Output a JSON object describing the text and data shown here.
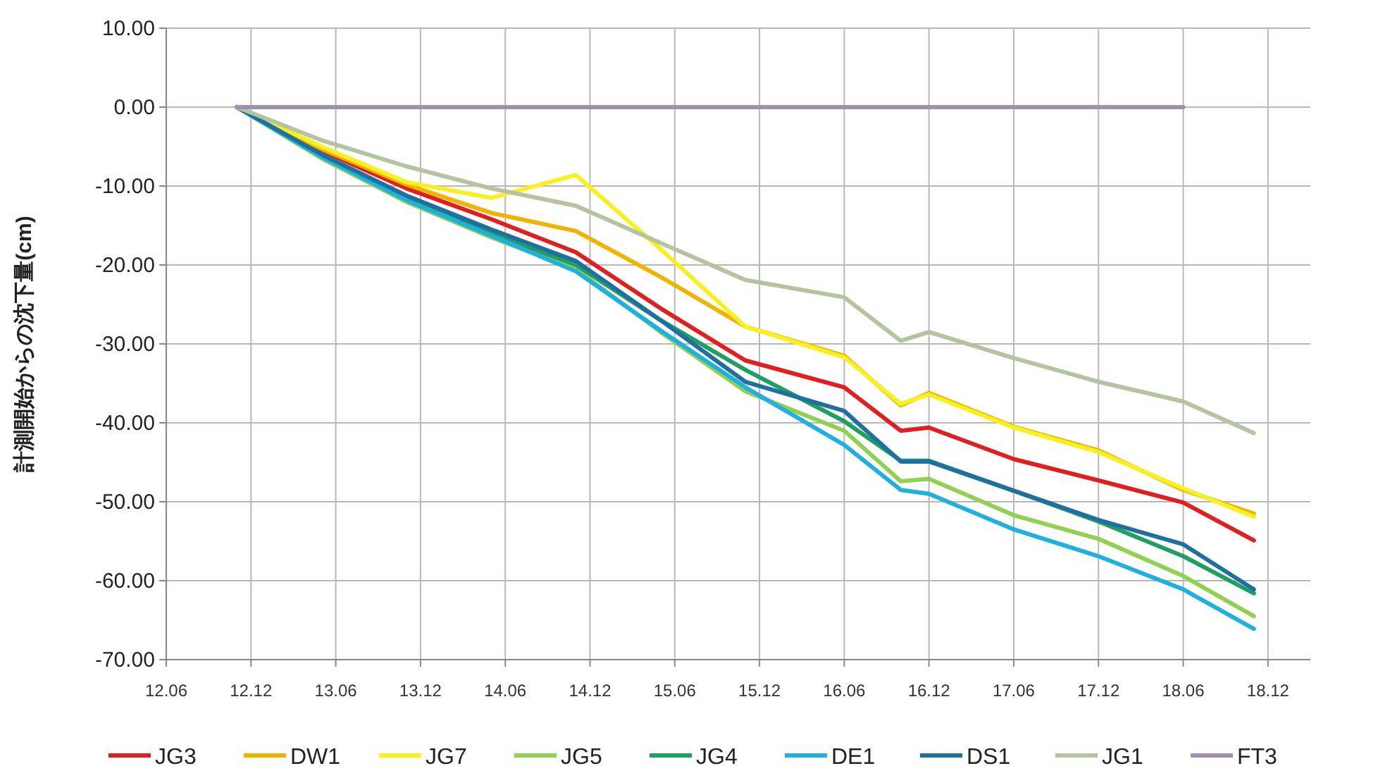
{
  "chart_data": {
    "type": "line",
    "ylabel": "計測開始からの沈下量(cm)",
    "x": [
      "2012-11",
      "2013-05",
      "2013-11",
      "2014-05",
      "2014-11",
      "2015-05",
      "2015-11",
      "2016-06",
      "2016-10",
      "2016-12",
      "2017-06",
      "2017-12",
      "2018-06",
      "2018-11"
    ],
    "series": [
      {
        "name": "JG3",
        "color": "#e02020",
        "values": [
          0,
          -5.5,
          -10.3,
          -14.2,
          -18.4,
          -25.5,
          -32.1,
          -35.5,
          -41.0,
          -40.6,
          -44.6,
          -47.3,
          -50.1,
          -54.9
        ]
      },
      {
        "name": "DW1",
        "color": "#f0b400",
        "values": [
          0,
          -5.3,
          -9.8,
          -13.4,
          -15.7,
          -21.5,
          -27.8,
          -31.5,
          -37.8,
          -36.2,
          -40.5,
          -43.5,
          -48.5,
          -51.5
        ]
      },
      {
        "name": "JG7",
        "color": "#f8f020",
        "values": [
          0,
          -5.0,
          -9.5,
          -11.5,
          -8.6,
          -18.0,
          -27.8,
          -31.7,
          -37.6,
          -36.4,
          -40.6,
          -43.7,
          -48.3,
          -51.9
        ]
      },
      {
        "name": "JG5",
        "color": "#92d050",
        "values": [
          0,
          -6.5,
          -12.0,
          -16.5,
          -20.5,
          -28.5,
          -36.0,
          -41.0,
          -47.4,
          -47.1,
          -51.7,
          -54.7,
          -59.4,
          -64.5
        ]
      },
      {
        "name": "JG4",
        "color": "#20a060",
        "values": [
          0,
          -6.2,
          -11.5,
          -16.0,
          -20.0,
          -27.0,
          -33.3,
          -39.8,
          -44.8,
          -44.8,
          -48.6,
          -52.5,
          -56.9,
          -61.6
        ]
      },
      {
        "name": "DE1",
        "color": "#20b0e0",
        "values": [
          0,
          -6.3,
          -11.8,
          -16.3,
          -20.8,
          -28.3,
          -35.5,
          -42.8,
          -48.5,
          -49.0,
          -53.5,
          -56.9,
          -61.1,
          -66.1
        ]
      },
      {
        "name": "DS1",
        "color": "#1f6fa0",
        "values": [
          0,
          -6.0,
          -11.2,
          -15.5,
          -19.5,
          -27.0,
          -34.8,
          -38.5,
          -44.9,
          -44.9,
          -48.6,
          -52.3,
          -55.4,
          -61.1
        ]
      },
      {
        "name": "JG1",
        "color": "#b4c4a0",
        "values": [
          0,
          -4.2,
          -7.5,
          -10.3,
          -12.5,
          -17.2,
          -21.9,
          -24.1,
          -29.6,
          -28.5,
          -31.8,
          -34.8,
          -37.3,
          -41.3
        ]
      },
      {
        "name": "FT3",
        "color": "#a090b0",
        "values": [
          0,
          0,
          0,
          0,
          0,
          0,
          0,
          0,
          0,
          0,
          0,
          0,
          0,
          null
        ]
      }
    ],
    "xlim": [
      "2012-06",
      "2019-03"
    ],
    "xticks": [
      {
        "value": "2012-06",
        "label": "12.06"
      },
      {
        "value": "2012-12",
        "label": "12.12"
      },
      {
        "value": "2013-06",
        "label": "13.06"
      },
      {
        "value": "2013-12",
        "label": "13.12"
      },
      {
        "value": "2014-06",
        "label": "14.06"
      },
      {
        "value": "2014-12",
        "label": "14.12"
      },
      {
        "value": "2015-06",
        "label": "15.06"
      },
      {
        "value": "2015-12",
        "label": "15.12"
      },
      {
        "value": "2016-06",
        "label": "16.06"
      },
      {
        "value": "2016-12",
        "label": "16.12"
      },
      {
        "value": "2017-06",
        "label": "17.06"
      },
      {
        "value": "2017-12",
        "label": "17.12"
      },
      {
        "value": "2018-06",
        "label": "18.06"
      },
      {
        "value": "2018-12",
        "label": "18.12"
      }
    ],
    "ylim": [
      -70,
      10
    ],
    "yticks": [
      {
        "value": 10,
        "label": "10.00"
      },
      {
        "value": 0,
        "label": "0.00"
      },
      {
        "value": -10,
        "label": "-10.00"
      },
      {
        "value": -20,
        "label": "-20.00"
      },
      {
        "value": -30,
        "label": "-30.00"
      },
      {
        "value": -40,
        "label": "-40.00"
      },
      {
        "value": -50,
        "label": "-50.00"
      },
      {
        "value": -60,
        "label": "-60.00"
      },
      {
        "value": -70,
        "label": "-70.00"
      }
    ],
    "grid": true,
    "legend": "bottom",
    "line_style": "solid",
    "marker": "none"
  }
}
